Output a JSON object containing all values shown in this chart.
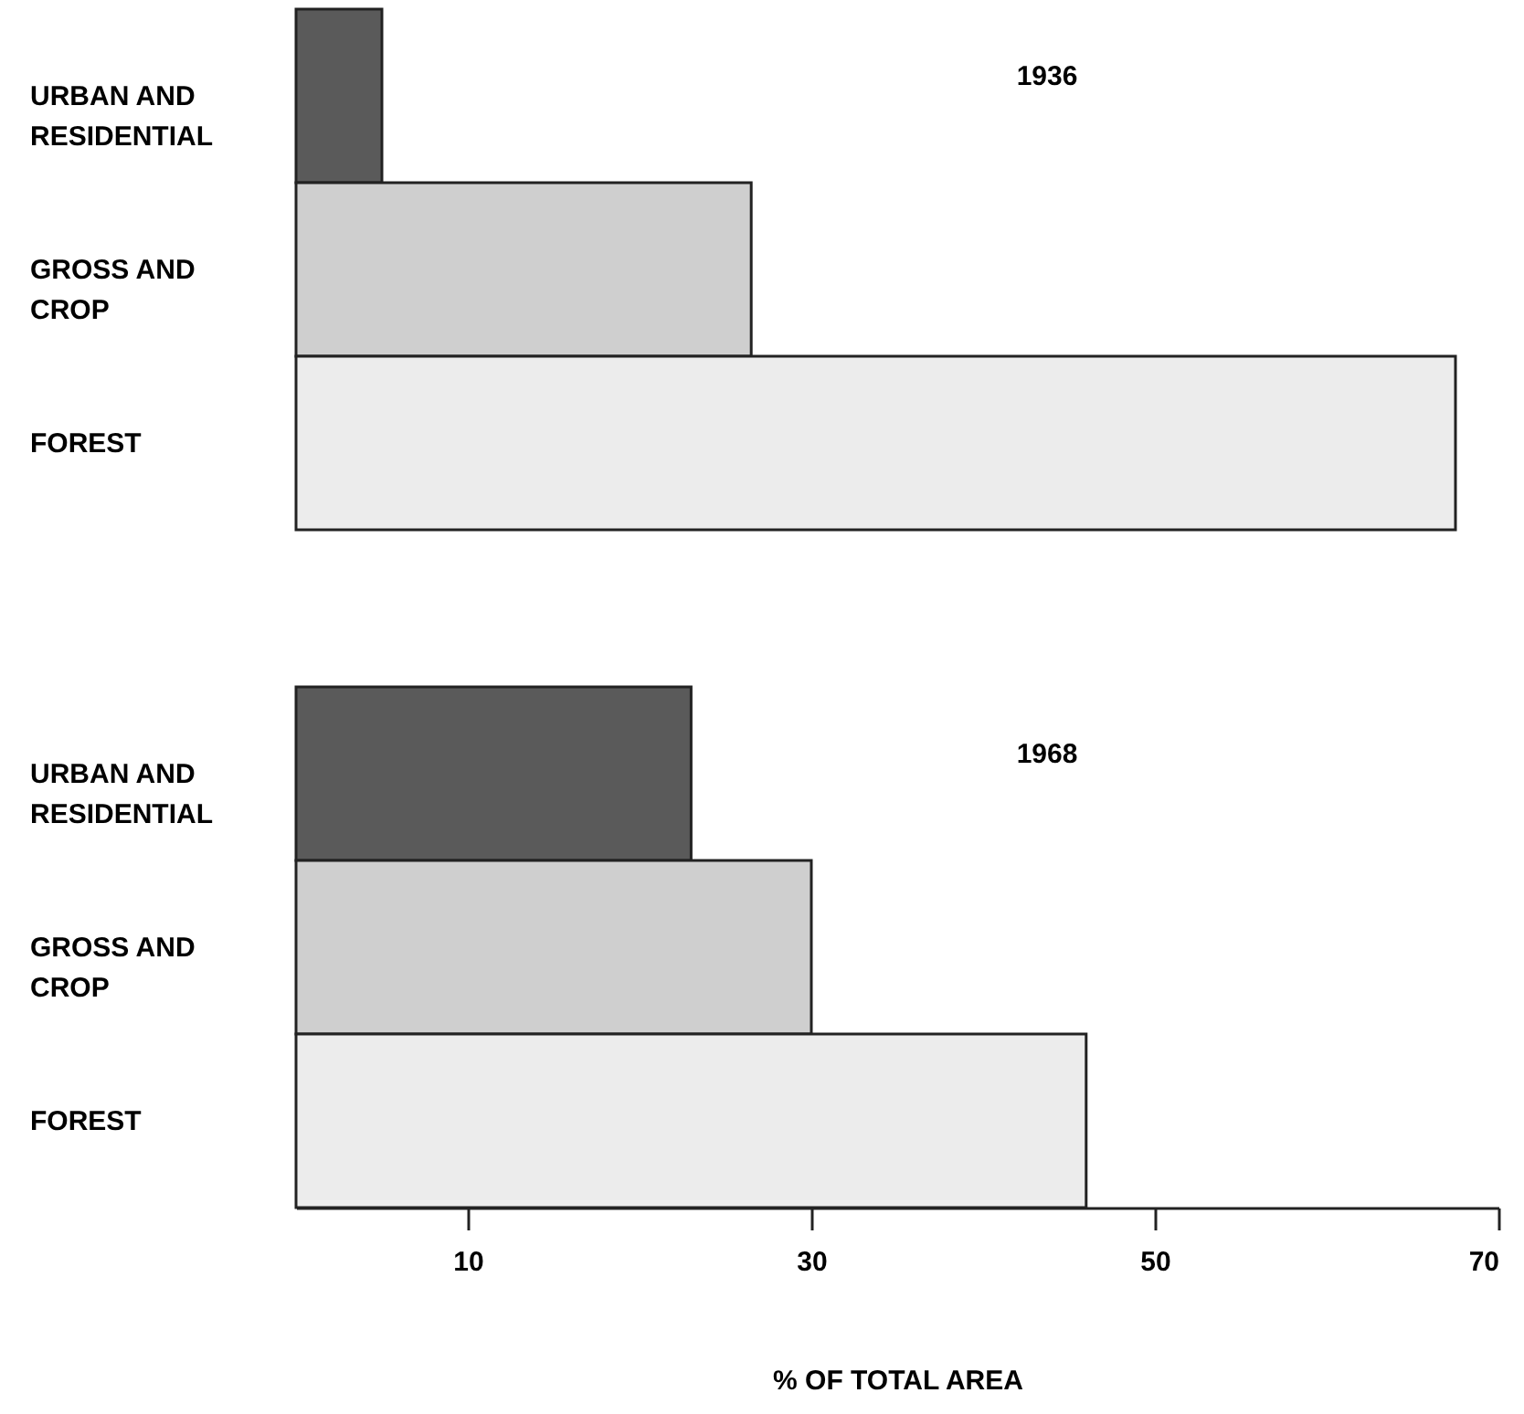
{
  "chart_data": [
    {
      "type": "bar",
      "orientation": "horizontal",
      "title": "1936",
      "categories": [
        "URBAN AND RESIDENTIAL",
        "GROSS AND CROP",
        "FOREST"
      ],
      "values": [
        5,
        26.5,
        67.5
      ],
      "colors": [
        "#5a5a5a",
        "#cfcfcf",
        "#ececec"
      ],
      "xlim": [
        0,
        70
      ],
      "tick_labels": "y",
      "grid": false
    },
    {
      "type": "bar",
      "orientation": "horizontal",
      "title": "1968",
      "categories": [
        "URBAN AND RESIDENTIAL",
        "GROSS AND CROP",
        "FOREST"
      ],
      "values": [
        23,
        30,
        46
      ],
      "colors": [
        "#5a5a5a",
        "#cfcfcf",
        "#ececec"
      ],
      "xlim": [
        0,
        70
      ],
      "xticks": [
        10,
        30,
        50,
        70
      ],
      "xlabel": "% OF TOTAL AREA",
      "grid": false
    }
  ]
}
